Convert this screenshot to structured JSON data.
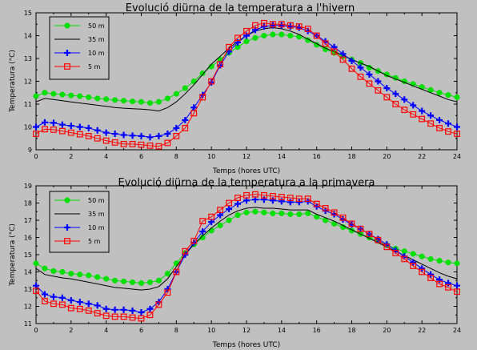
{
  "chart_data": [
    {
      "type": "line",
      "title": "Evolució diürna de la temperatura a l'hivern",
      "xlabel": "Temps (hores UTC)",
      "ylabel": "Temperatura (°C)",
      "xlim": [
        0,
        24
      ],
      "ylim": [
        9,
        15
      ],
      "xticks": [
        "0",
        "2",
        "4",
        "6",
        "8",
        "10",
        "12",
        "14",
        "16",
        "18",
        "20",
        "22",
        "24"
      ],
      "yticks": [
        "9",
        "10",
        "11",
        "12",
        "13",
        "14",
        "15"
      ],
      "grid": false,
      "legend_position": "top-left",
      "x": [
        0,
        0.5,
        1,
        1.5,
        2,
        2.5,
        3,
        3.5,
        4,
        4.5,
        5,
        5.5,
        6,
        6.5,
        7,
        7.5,
        8,
        8.5,
        9,
        9.5,
        10,
        10.5,
        11,
        11.5,
        12,
        12.5,
        13,
        13.5,
        14,
        14.5,
        15,
        15.5,
        16,
        16.5,
        17,
        17.5,
        18,
        18.5,
        19,
        19.5,
        20,
        20.5,
        21,
        21.5,
        22,
        22.5,
        23,
        23.5,
        24
      ],
      "series": [
        {
          "name": "50 m",
          "color": "#00e000",
          "marker": "circle",
          "values": [
            11.35,
            11.5,
            11.45,
            11.42,
            11.38,
            11.35,
            11.3,
            11.25,
            11.22,
            11.18,
            11.15,
            11.12,
            11.1,
            11.05,
            11.1,
            11.25,
            11.45,
            11.7,
            12.0,
            12.35,
            12.65,
            12.95,
            13.25,
            13.5,
            13.75,
            13.9,
            14.0,
            14.05,
            14.05,
            14.0,
            13.95,
            13.8,
            13.6,
            13.4,
            13.25,
            13.1,
            12.95,
            12.8,
            12.6,
            12.45,
            12.3,
            12.15,
            12.0,
            11.88,
            11.75,
            11.62,
            11.5,
            11.4,
            11.3
          ]
        },
        {
          "name": "35 m",
          "color": "#000000",
          "marker": "none",
          "values": [
            11.1,
            11.25,
            11.2,
            11.15,
            11.1,
            11.05,
            11.0,
            10.95,
            10.9,
            10.85,
            10.82,
            10.8,
            10.78,
            10.75,
            10.7,
            10.85,
            11.1,
            11.45,
            11.85,
            12.3,
            12.75,
            13.1,
            13.45,
            13.75,
            14.0,
            14.2,
            14.3,
            14.35,
            14.3,
            14.2,
            14.05,
            13.85,
            13.65,
            13.45,
            13.3,
            13.15,
            12.95,
            12.8,
            12.65,
            12.45,
            12.25,
            12.1,
            11.95,
            11.8,
            11.65,
            11.5,
            11.35,
            11.2,
            11.1
          ]
        },
        {
          "name": "10 m",
          "color": "#0000ff",
          "marker": "plus",
          "values": [
            10.0,
            10.2,
            10.18,
            10.1,
            10.05,
            10.0,
            9.95,
            9.85,
            9.75,
            9.7,
            9.65,
            9.62,
            9.6,
            9.55,
            9.6,
            9.7,
            9.95,
            10.3,
            10.85,
            11.4,
            11.95,
            12.7,
            13.3,
            13.7,
            14.0,
            14.25,
            14.4,
            14.45,
            14.45,
            14.4,
            14.35,
            14.2,
            14.0,
            13.75,
            13.5,
            13.2,
            12.9,
            12.6,
            12.3,
            12.0,
            11.7,
            11.45,
            11.2,
            10.95,
            10.7,
            10.5,
            10.3,
            10.15,
            10.0
          ]
        },
        {
          "name": "5 m",
          "color": "#ff0000",
          "marker": "square",
          "values": [
            9.7,
            9.9,
            9.88,
            9.82,
            9.75,
            9.68,
            9.6,
            9.5,
            9.4,
            9.32,
            9.25,
            9.25,
            9.22,
            9.18,
            9.15,
            9.3,
            9.6,
            9.95,
            10.6,
            11.3,
            12.0,
            12.75,
            13.5,
            13.9,
            14.2,
            14.45,
            14.55,
            14.5,
            14.5,
            14.45,
            14.4,
            14.3,
            14.0,
            13.65,
            13.3,
            12.95,
            12.55,
            12.2,
            11.9,
            11.6,
            11.3,
            11.0,
            10.75,
            10.55,
            10.35,
            10.15,
            9.95,
            9.8,
            9.7
          ]
        }
      ]
    },
    {
      "type": "line",
      "title": "Evolució diürna de la temperatura a la primavera",
      "xlabel": "Temps (hores UTC)",
      "ylabel": "Temperatura (°C)",
      "xlim": [
        0,
        24
      ],
      "ylim": [
        11,
        19
      ],
      "xticks": [
        "0",
        "2",
        "4",
        "6",
        "8",
        "10",
        "12",
        "14",
        "16",
        "18",
        "20",
        "22",
        "24"
      ],
      "yticks": [
        "11",
        "12",
        "13",
        "14",
        "15",
        "16",
        "17",
        "18",
        "19"
      ],
      "grid": false,
      "legend_position": "top-left",
      "x": [
        0,
        0.5,
        1,
        1.5,
        2,
        2.5,
        3,
        3.5,
        4,
        4.5,
        5,
        5.5,
        6,
        6.5,
        7,
        7.5,
        8,
        8.5,
        9,
        9.5,
        10,
        10.5,
        11,
        11.5,
        12,
        12.5,
        13,
        13.5,
        14,
        14.5,
        15,
        15.5,
        16,
        16.5,
        17,
        17.5,
        18,
        18.5,
        19,
        19.5,
        20,
        20.5,
        21,
        21.5,
        22,
        22.5,
        23,
        23.5,
        24
      ],
      "series": [
        {
          "name": "50 m",
          "color": "#00e000",
          "marker": "circle",
          "values": [
            14.5,
            14.2,
            14.05,
            14.0,
            13.9,
            13.85,
            13.8,
            13.7,
            13.6,
            13.5,
            13.45,
            13.4,
            13.35,
            13.4,
            13.5,
            13.9,
            14.5,
            15.1,
            15.6,
            16.0,
            16.4,
            16.7,
            17.0,
            17.3,
            17.45,
            17.5,
            17.45,
            17.4,
            17.4,
            17.35,
            17.35,
            17.4,
            17.2,
            17.0,
            16.8,
            16.6,
            16.4,
            16.2,
            16.0,
            15.8,
            15.55,
            15.35,
            15.2,
            15.05,
            14.9,
            14.75,
            14.65,
            14.55,
            14.5
          ]
        },
        {
          "name": "35 m",
          "color": "#000000",
          "marker": "none",
          "values": [
            14.2,
            13.85,
            13.75,
            13.65,
            13.6,
            13.5,
            13.4,
            13.3,
            13.2,
            13.1,
            13.05,
            13.0,
            12.95,
            13.0,
            13.15,
            13.6,
            14.3,
            15.0,
            15.6,
            16.1,
            16.55,
            16.95,
            17.3,
            17.55,
            17.7,
            17.75,
            17.7,
            17.7,
            17.65,
            17.6,
            17.6,
            17.6,
            17.35,
            17.15,
            16.95,
            16.7,
            16.45,
            16.2,
            15.95,
            15.7,
            15.45,
            15.2,
            14.95,
            14.7,
            14.45,
            14.2,
            13.95,
            13.75,
            13.6
          ]
        },
        {
          "name": "10 m",
          "color": "#0000ff",
          "marker": "plus",
          "values": [
            13.2,
            12.7,
            12.55,
            12.5,
            12.35,
            12.25,
            12.15,
            12.05,
            11.85,
            11.8,
            11.8,
            11.75,
            11.65,
            11.85,
            12.25,
            13.0,
            14.0,
            15.0,
            15.7,
            16.35,
            16.9,
            17.3,
            17.65,
            17.95,
            18.15,
            18.2,
            18.2,
            18.15,
            18.1,
            18.05,
            18.05,
            18.1,
            17.8,
            17.55,
            17.35,
            17.05,
            16.75,
            16.5,
            16.2,
            15.9,
            15.6,
            15.25,
            14.9,
            14.55,
            14.2,
            13.85,
            13.55,
            13.35,
            13.2
          ]
        },
        {
          "name": "5 m",
          "color": "#ff0000",
          "marker": "square",
          "values": [
            12.9,
            12.3,
            12.15,
            12.1,
            11.9,
            11.85,
            11.75,
            11.6,
            11.45,
            11.4,
            11.4,
            11.35,
            11.3,
            11.5,
            12.1,
            12.8,
            14.0,
            15.2,
            15.8,
            16.95,
            17.2,
            17.6,
            18.0,
            18.3,
            18.45,
            18.5,
            18.45,
            18.4,
            18.35,
            18.3,
            18.25,
            18.25,
            17.95,
            17.7,
            17.45,
            17.15,
            16.8,
            16.5,
            16.2,
            15.85,
            15.45,
            15.1,
            14.75,
            14.35,
            14.0,
            13.65,
            13.3,
            13.1,
            12.85
          ]
        }
      ]
    }
  ]
}
